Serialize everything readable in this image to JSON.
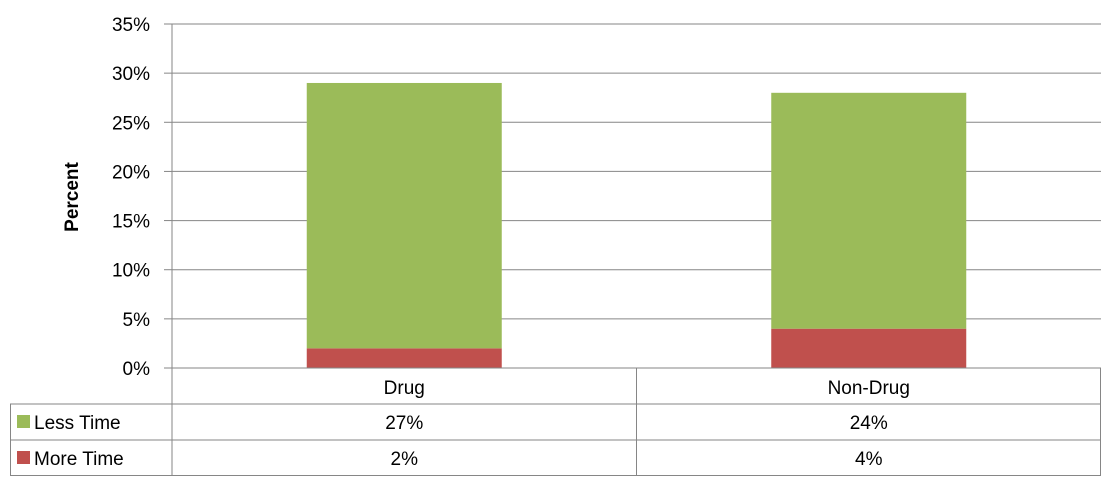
{
  "chart_data": {
    "type": "bar",
    "stacked": true,
    "categories": [
      "Drug",
      "Non-Drug"
    ],
    "series": [
      {
        "name": "More Time",
        "values": [
          2,
          4
        ],
        "labels": [
          "2%",
          "4%"
        ],
        "color": "#C0504D"
      },
      {
        "name": "Less Time",
        "values": [
          27,
          24
        ],
        "labels": [
          "27%",
          "24%"
        ],
        "color": "#9BBB59"
      }
    ],
    "ylabel": "Percent",
    "xlabel": "",
    "ylim": [
      0,
      35
    ],
    "yticks": [
      0,
      5,
      10,
      15,
      20,
      25,
      30,
      35
    ],
    "ytick_labels": [
      "0%",
      "5%",
      "10%",
      "15%",
      "20%",
      "25%",
      "30%",
      "35%"
    ],
    "grid": true,
    "legend": "data-table",
    "data_table_rows": [
      {
        "series": "Less Time",
        "values": [
          "27%",
          "24%"
        ]
      },
      {
        "series": "More Time",
        "values": [
          "2%",
          "4%"
        ]
      }
    ],
    "gridline_color": "#868686",
    "axis_color": "#868686"
  }
}
